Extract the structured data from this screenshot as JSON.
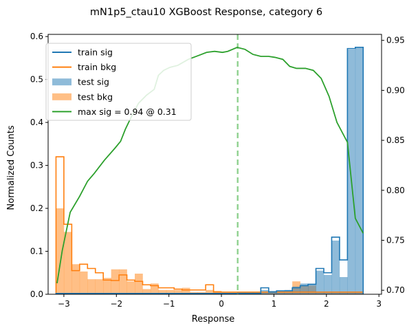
{
  "chart_data": {
    "type": "histogram",
    "title": "mN1p5_ctau10 XGBoost Response, category 6",
    "xlabel": "Response",
    "ylabel": "Normalized Counts",
    "xlim": [
      -3.3,
      3.05
    ],
    "ylim": [
      0,
      0.605
    ],
    "y2lim": [
      0.696,
      0.956
    ],
    "xticks": [
      -3,
      -2,
      -1,
      0,
      1,
      2,
      3
    ],
    "xtick_labels": [
      "−3",
      "−2",
      "−1",
      "0",
      "1",
      "2",
      "3"
    ],
    "yticks": [
      0.0,
      0.1,
      0.2,
      0.3,
      0.4,
      0.5,
      0.6
    ],
    "ytick_labels": [
      "0.0",
      "0.1",
      "0.2",
      "0.3",
      "0.4",
      "0.5",
      "0.6"
    ],
    "y2ticks": [
      0.7,
      0.75,
      0.8,
      0.85,
      0.9,
      0.95
    ],
    "y2tick_labels": [
      "0.70",
      "0.75",
      "0.80",
      "0.85",
      "0.90",
      "0.95"
    ],
    "legend_position": "upper-left",
    "colors": {
      "sig": "#1f77b4",
      "bkg": "#ff7f0e",
      "curve": "#2ca02c",
      "cut": "#8fd18f"
    },
    "bin_range": [
      -3.15,
      2.7
    ],
    "n_bins": 39,
    "series": [
      {
        "name": "train sig",
        "kind": "step",
        "values": [
          0.002,
          0.002,
          0.002,
          0.002,
          0.002,
          0.002,
          0.002,
          0.002,
          0.002,
          0.002,
          0.002,
          0.002,
          0.002,
          0.002,
          0.002,
          0.002,
          0.002,
          0.002,
          0.002,
          0.002,
          0.002,
          0.002,
          0.002,
          0.002,
          0.002,
          0.002,
          0.015,
          0.005,
          0.008,
          0.008,
          0.015,
          0.02,
          0.023,
          0.06,
          0.05,
          0.133,
          0.08,
          0.572,
          0.575
        ]
      },
      {
        "name": "train bkg",
        "kind": "step",
        "values": [
          0.32,
          0.163,
          0.055,
          0.07,
          0.06,
          0.05,
          0.033,
          0.032,
          0.045,
          0.033,
          0.03,
          0.022,
          0.02,
          0.015,
          0.015,
          0.012,
          0.01,
          0.01,
          0.01,
          0.022,
          0.005,
          0.005,
          0.005,
          0.005,
          0.005,
          0.005,
          0.005,
          0.005,
          0.005,
          0.005,
          0.005,
          0.005,
          0.005,
          0.005,
          0.005,
          0.005,
          0.005,
          0.005,
          0.005
        ]
      },
      {
        "name": "test sig",
        "kind": "filled",
        "values": [
          0.002,
          0.002,
          0.002,
          0.002,
          0.002,
          0.002,
          0.002,
          0.002,
          0.002,
          0.002,
          0.002,
          0.002,
          0.002,
          0.002,
          0.002,
          0.002,
          0.002,
          0.002,
          0.002,
          0.002,
          0.002,
          0.002,
          0.002,
          0.005,
          0.005,
          0.005,
          0.01,
          0.008,
          0.008,
          0.01,
          0.018,
          0.025,
          0.025,
          0.055,
          0.045,
          0.125,
          0.04,
          0.57,
          0.575
        ]
      },
      {
        "name": "test bkg",
        "kind": "filled",
        "values": [
          0.2,
          0.145,
          0.07,
          0.053,
          0.035,
          0.035,
          0.038,
          0.058,
          0.058,
          0.03,
          0.048,
          0.012,
          0.025,
          0.01,
          0.01,
          0.01,
          0.015,
          0.005,
          0.005,
          0.01,
          0.008,
          0.005,
          0.005,
          0.005,
          0.005,
          0.005,
          0.005,
          0.005,
          0.005,
          0.005,
          0.03,
          0.02,
          0.02,
          0.005,
          0.005,
          0.005,
          0.005,
          0.005,
          0.005
        ]
      },
      {
        "name": "max sig = 0.94 @ 0.31",
        "kind": "line",
        "axis": "right",
        "x": [
          -3.13,
          -3.03,
          -2.88,
          -2.7,
          -2.55,
          -2.42,
          -2.23,
          -2.03,
          -1.92,
          -1.83,
          -1.72,
          -1.58,
          -1.43,
          -1.28,
          -1.2,
          -1.1,
          -0.98,
          -0.83,
          -0.63,
          -0.43,
          -0.28,
          -0.13,
          0.02,
          0.12,
          0.3,
          0.45,
          0.6,
          0.75,
          0.9,
          1.02,
          1.17,
          1.3,
          1.43,
          1.6,
          1.75,
          1.9,
          2.05,
          2.2,
          2.4,
          2.55,
          2.7
        ],
        "y": [
          0.707,
          0.74,
          0.778,
          0.794,
          0.809,
          0.817,
          0.83,
          0.842,
          0.849,
          0.861,
          0.873,
          0.887,
          0.895,
          0.901,
          0.915,
          0.92,
          0.923,
          0.925,
          0.931,
          0.935,
          0.938,
          0.939,
          0.938,
          0.939,
          0.943,
          0.941,
          0.936,
          0.934,
          0.934,
          0.933,
          0.931,
          0.924,
          0.922,
          0.922,
          0.92,
          0.912,
          0.894,
          0.868,
          0.848,
          0.772,
          0.757
        ]
      }
    ],
    "annotations": [
      {
        "type": "vline",
        "x": 0.31,
        "style": "dashed"
      }
    ]
  }
}
